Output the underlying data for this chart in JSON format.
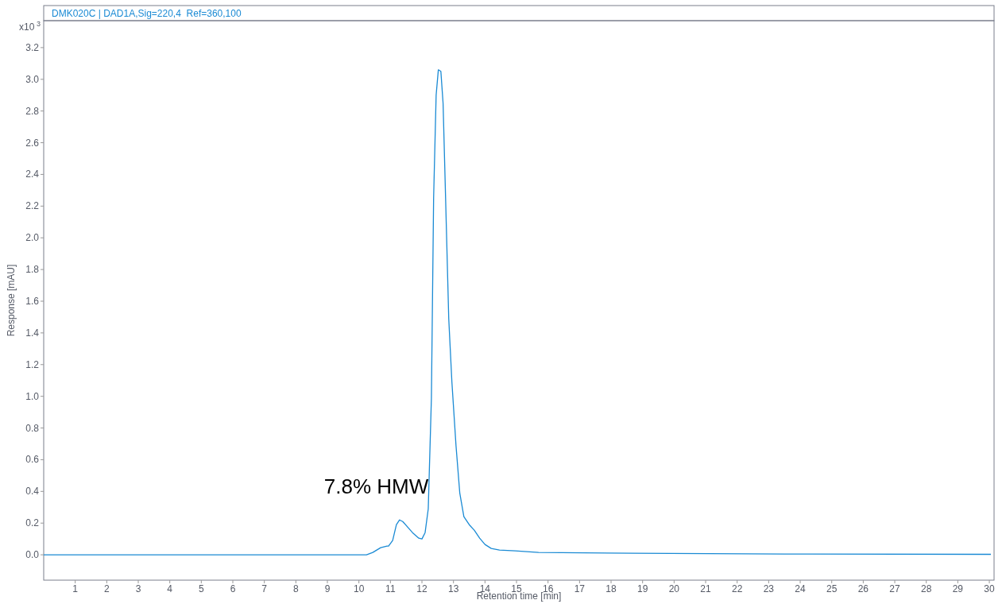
{
  "chart_data": {
    "type": "line",
    "title": "DMK020C | DAD1A,Sig=220,4  Ref=360,100",
    "xlabel": "Retention time [min]",
    "ylabel": "Response [mAU]",
    "annotations": [
      "x10$^{3}$",
      "7.8% HMW"
    ],
    "xlim": [
      0,
      30.15
    ],
    "xticks": [
      1,
      2,
      3,
      4,
      5,
      6,
      7,
      8,
      9,
      10,
      11,
      12,
      13,
      14,
      15,
      16,
      17,
      18,
      19,
      20,
      21,
      22,
      23,
      24,
      25,
      26,
      27,
      28,
      29,
      30
    ],
    "ylim": [
      -0.16,
      3.37
    ],
    "yticks": [
      {
        "value": 0,
        "label": "0.0"
      },
      0.2,
      0.4,
      0.6,
      0.8,
      {
        "value": 1,
        "label": "1.0"
      },
      1.2,
      1.4,
      1.6,
      1.8,
      {
        "value": 2,
        "label": "2.0"
      },
      2.2,
      2.4,
      2.6,
      2.8,
      {
        "value": 3,
        "label": "3.0"
      },
      3.2
    ],
    "marker": "none",
    "line_style": "solid",
    "series": [
      {
        "color": "#1a8ad4",
        "x": [
          0,
          10.24,
          10.44,
          10.69,
          10.89,
          10.94,
          11.07,
          11.19,
          11.29,
          11.39,
          11.7,
          11.9,
          12.0,
          12.1,
          12.2,
          12.3,
          12.37,
          12.45,
          12.52,
          12.6,
          12.67,
          12.75,
          12.85,
          12.95,
          13.08,
          13.2,
          13.33,
          13.5,
          13.66,
          13.83,
          14.0,
          14.2,
          14.46,
          14.96,
          15.7,
          18.7,
          23.5,
          30.05
        ],
        "values": [
          0,
          0,
          0.015,
          0.045,
          0.055,
          0.055,
          0.09,
          0.19,
          0.22,
          0.21,
          0.14,
          0.105,
          0.1,
          0.14,
          0.29,
          0.99,
          2.25,
          2.9,
          3.06,
          3.05,
          2.85,
          2.25,
          1.49,
          1.09,
          0.69,
          0.39,
          0.24,
          0.19,
          0.155,
          0.105,
          0.065,
          0.04,
          0.03,
          0.025,
          0.015,
          0.01,
          0.005,
          0.003
        ]
      }
    ]
  }
}
